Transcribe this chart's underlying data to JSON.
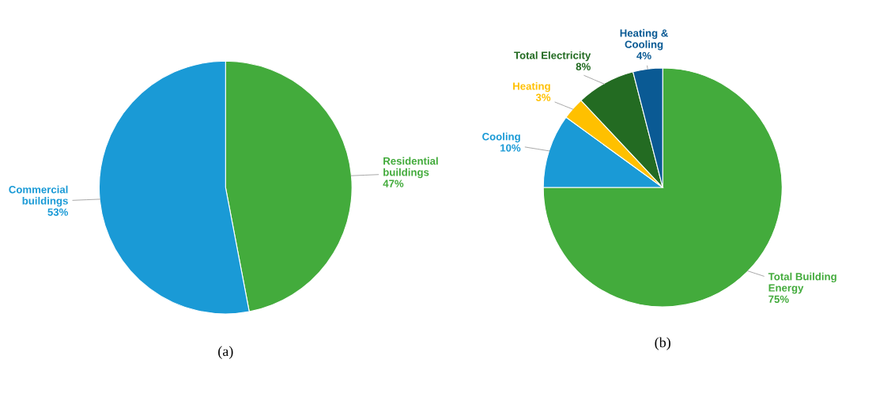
{
  "chart_data": [
    {
      "type": "pie",
      "categories": [
        "Residential\nbuildings",
        "Commercial\nbuildings"
      ],
      "values": [
        47,
        53
      ],
      "value_labels": [
        "47%",
        "53%"
      ],
      "colors": [
        "#43ab3c",
        "#1a9ad6"
      ],
      "annotations": [
        "(a)"
      ]
    },
    {
      "type": "pie",
      "categories": [
        "Total Building\nEnergy",
        "Cooling",
        "Heating",
        "Total Electricity",
        "Heating &\nCooling"
      ],
      "values": [
        75,
        10,
        3,
        8,
        4
      ],
      "value_labels": [
        "75%",
        "10%",
        "3%",
        "8%",
        "4%"
      ],
      "colors": [
        "#43ab3c",
        "#1a9ad6",
        "#ffc000",
        "#236b22",
        "#0a5a94"
      ],
      "annotations": [
        "(b)"
      ]
    }
  ]
}
